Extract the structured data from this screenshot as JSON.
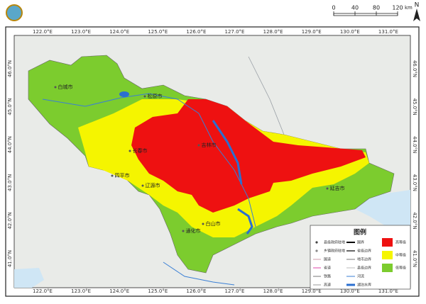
{
  "scale_bar": {
    "ticks": [
      0,
      40,
      80,
      120
    ],
    "unit": "km"
  },
  "north": "N",
  "longitude_labels": [
    "122.0°E",
    "123.0°E",
    "124.0°E",
    "125.0°E",
    "126.0°E",
    "127.0°E",
    "128.0°E",
    "129.0°E",
    "130.0°E",
    "131.0°E"
  ],
  "latitude_labels": [
    "46.0°N",
    "45.0°N",
    "44.0°N",
    "43.0°N",
    "42.0°N",
    "41.0°N"
  ],
  "cities": [
    "白城市",
    "松原市",
    "长春市",
    "吉林市",
    "四平市",
    "辽源市",
    "延吉市",
    "白山市",
    "通化市"
  ],
  "legend": {
    "title": "图例",
    "points_and_roads": [
      "县级政府驻地",
      "乡镇政府驻地",
      "国道",
      "省道",
      "铁路",
      "高速"
    ],
    "boundaries_and_water": [
      "国界",
      "省级边界",
      "地市边界",
      "县级边界",
      "河流",
      "湖泊水库"
    ],
    "levels": [
      {
        "name": "高等级",
        "color": "#ee1111"
      },
      {
        "name": "中等级",
        "color": "#f5f500"
      },
      {
        "name": "低等级",
        "color": "#7ccc2e"
      }
    ]
  }
}
